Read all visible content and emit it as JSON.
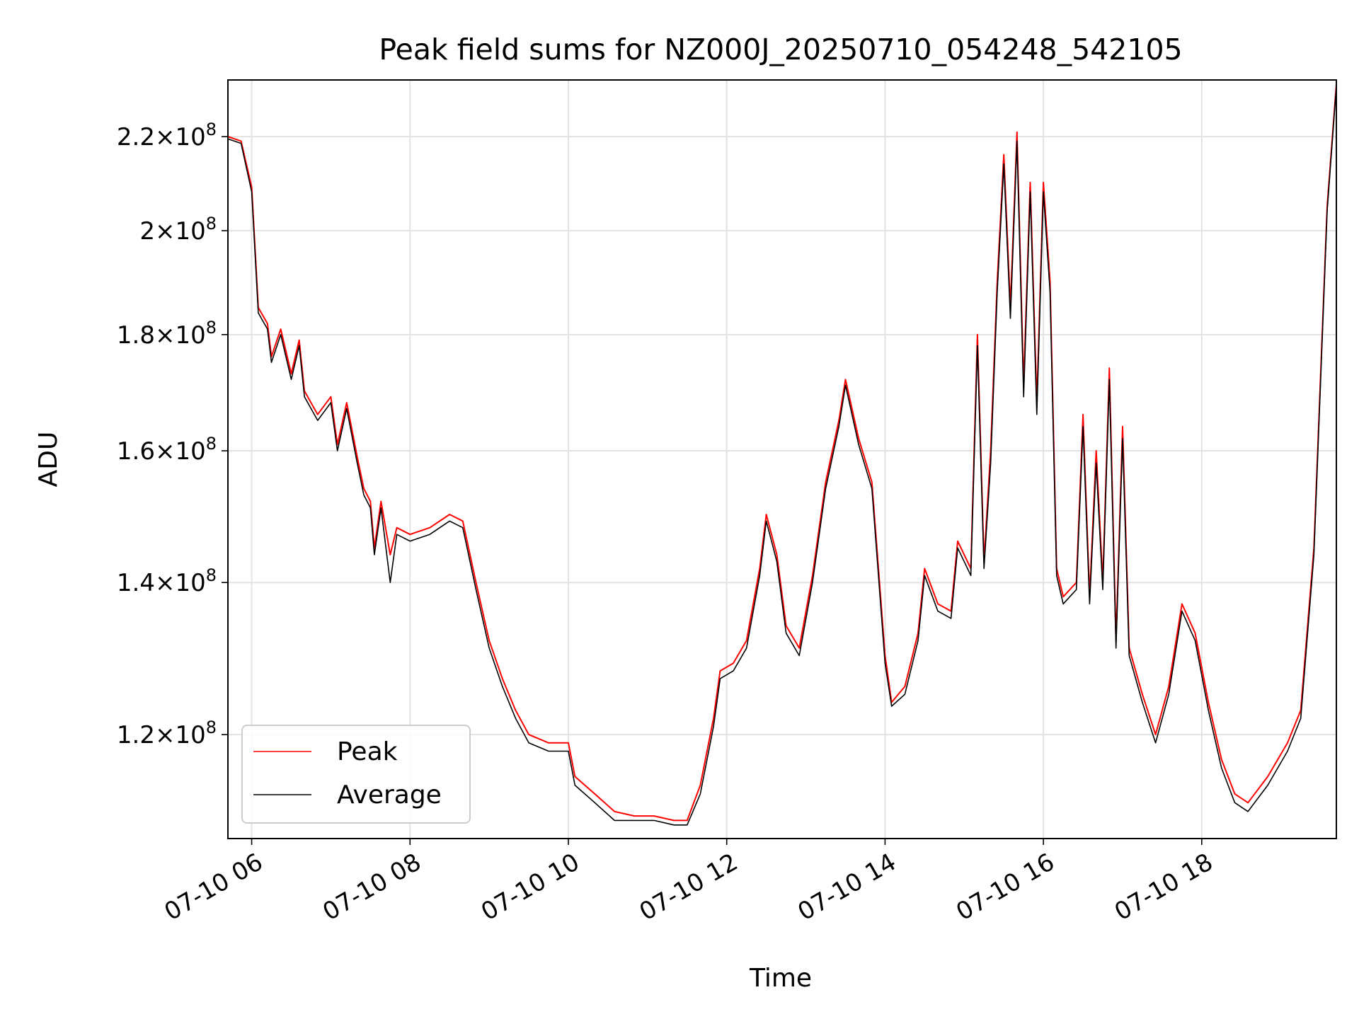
{
  "chart_data": {
    "type": "line",
    "title": "Peak field sums for NZ000J_20250710_054248_542105",
    "xlabel": "Time",
    "ylabel": "ADU",
    "y_scale": "log",
    "xlim": [
      "2025-07-10 05:42",
      "2025-07-10 19:42"
    ],
    "ylim": [
      108000000,
      233000000
    ],
    "grid": true,
    "legend_position": "lower-left",
    "x_ticks": [
      {
        "t": "2025-07-10 06:00",
        "label": "07-10 06"
      },
      {
        "t": "2025-07-10 08:00",
        "label": "07-10 08"
      },
      {
        "t": "2025-07-10 10:00",
        "label": "07-10 10"
      },
      {
        "t": "2025-07-10 12:00",
        "label": "07-10 12"
      },
      {
        "t": "2025-07-10 14:00",
        "label": "07-10 14"
      },
      {
        "t": "2025-07-10 16:00",
        "label": "07-10 16"
      },
      {
        "t": "2025-07-10 18:00",
        "label": "07-10 18"
      }
    ],
    "y_ticks": [
      {
        "value": 120000000,
        "mantissa": "1.2",
        "exp": "8"
      },
      {
        "value": 140000000,
        "mantissa": "1.4",
        "exp": "8"
      },
      {
        "value": 160000000,
        "mantissa": "1.6",
        "exp": "8"
      },
      {
        "value": 180000000,
        "mantissa": "1.8",
        "exp": "8"
      },
      {
        "value": 200000000,
        "mantissa": "2",
        "exp": "8"
      },
      {
        "value": 220000000,
        "mantissa": "2.2",
        "exp": "8"
      }
    ],
    "series": [
      {
        "name": "Peak",
        "color": "#ff0000",
        "points": [
          [
            "2025-07-10 05:42",
            220000000
          ],
          [
            "2025-07-10 05:52",
            219000000
          ],
          [
            "2025-07-10 06:00",
            209000000
          ],
          [
            "2025-07-10 06:05",
            185000000
          ],
          [
            "2025-07-10 06:12",
            182000000
          ],
          [
            "2025-07-10 06:15",
            176000000
          ],
          [
            "2025-07-10 06:22",
            181000000
          ],
          [
            "2025-07-10 06:30",
            173000000
          ],
          [
            "2025-07-10 06:36",
            179000000
          ],
          [
            "2025-07-10 06:40",
            170000000
          ],
          [
            "2025-07-10 06:50",
            166000000
          ],
          [
            "2025-07-10 07:00",
            169000000
          ],
          [
            "2025-07-10 07:05",
            161000000
          ],
          [
            "2025-07-10 07:12",
            168000000
          ],
          [
            "2025-07-10 07:20",
            159000000
          ],
          [
            "2025-07-10 07:25",
            154000000
          ],
          [
            "2025-07-10 07:30",
            152000000
          ],
          [
            "2025-07-10 07:33",
            145000000
          ],
          [
            "2025-07-10 07:38",
            152000000
          ],
          [
            "2025-07-10 07:45",
            144000000
          ],
          [
            "2025-07-10 07:50",
            148000000
          ],
          [
            "2025-07-10 08:00",
            147000000
          ],
          [
            "2025-07-10 08:15",
            148000000
          ],
          [
            "2025-07-10 08:30",
            150000000
          ],
          [
            "2025-07-10 08:40",
            149000000
          ],
          [
            "2025-07-10 08:50",
            140000000
          ],
          [
            "2025-07-10 09:00",
            132000000
          ],
          [
            "2025-07-10 09:10",
            127000000
          ],
          [
            "2025-07-10 09:20",
            123000000
          ],
          [
            "2025-07-10 09:30",
            120000000
          ],
          [
            "2025-07-10 09:45",
            119000000
          ],
          [
            "2025-07-10 10:00",
            119000000
          ],
          [
            "2025-07-10 10:05",
            115000000
          ],
          [
            "2025-07-10 10:20",
            113000000
          ],
          [
            "2025-07-10 10:35",
            111000000
          ],
          [
            "2025-07-10 10:50",
            110500000
          ],
          [
            "2025-07-10 11:05",
            110500000
          ],
          [
            "2025-07-10 11:20",
            110000000
          ],
          [
            "2025-07-10 11:30",
            110000000
          ],
          [
            "2025-07-10 11:40",
            114000000
          ],
          [
            "2025-07-10 11:50",
            122000000
          ],
          [
            "2025-07-10 11:55",
            128000000
          ],
          [
            "2025-07-10 12:05",
            129000000
          ],
          [
            "2025-07-10 12:15",
            132000000
          ],
          [
            "2025-07-10 12:25",
            142000000
          ],
          [
            "2025-07-10 12:30",
            150000000
          ],
          [
            "2025-07-10 12:38",
            144000000
          ],
          [
            "2025-07-10 12:45",
            134000000
          ],
          [
            "2025-07-10 12:55",
            131000000
          ],
          [
            "2025-07-10 13:05",
            141000000
          ],
          [
            "2025-07-10 13:15",
            155000000
          ],
          [
            "2025-07-10 13:25",
            165000000
          ],
          [
            "2025-07-10 13:30",
            172000000
          ],
          [
            "2025-07-10 13:40",
            162000000
          ],
          [
            "2025-07-10 13:50",
            155000000
          ],
          [
            "2025-07-10 14:00",
            130000000
          ],
          [
            "2025-07-10 14:05",
            124000000
          ],
          [
            "2025-07-10 14:15",
            126000000
          ],
          [
            "2025-07-10 14:25",
            133000000
          ],
          [
            "2025-07-10 14:30",
            142000000
          ],
          [
            "2025-07-10 14:40",
            137000000
          ],
          [
            "2025-07-10 14:50",
            136000000
          ],
          [
            "2025-07-10 14:55",
            146000000
          ],
          [
            "2025-07-10 15:05",
            142000000
          ],
          [
            "2025-07-10 15:10",
            180000000
          ],
          [
            "2025-07-10 15:15",
            143000000
          ],
          [
            "2025-07-10 15:20",
            160000000
          ],
          [
            "2025-07-10 15:25",
            190000000
          ],
          [
            "2025-07-10 15:30",
            216000000
          ],
          [
            "2025-07-10 15:35",
            185000000
          ],
          [
            "2025-07-10 15:40",
            221000000
          ],
          [
            "2025-07-10 15:45",
            171000000
          ],
          [
            "2025-07-10 15:50",
            210000000
          ],
          [
            "2025-07-10 15:55",
            168000000
          ],
          [
            "2025-07-10 16:00",
            210000000
          ],
          [
            "2025-07-10 16:05",
            190000000
          ],
          [
            "2025-07-10 16:10",
            142000000
          ],
          [
            "2025-07-10 16:15",
            138000000
          ],
          [
            "2025-07-10 16:25",
            140000000
          ],
          [
            "2025-07-10 16:30",
            166000000
          ],
          [
            "2025-07-10 16:35",
            138000000
          ],
          [
            "2025-07-10 16:40",
            160000000
          ],
          [
            "2025-07-10 16:45",
            140000000
          ],
          [
            "2025-07-10 16:50",
            174000000
          ],
          [
            "2025-07-10 16:55",
            132000000
          ],
          [
            "2025-07-10 17:00",
            164000000
          ],
          [
            "2025-07-10 17:05",
            131000000
          ],
          [
            "2025-07-10 17:15",
            125000000
          ],
          [
            "2025-07-10 17:25",
            120000000
          ],
          [
            "2025-07-10 17:35",
            126000000
          ],
          [
            "2025-07-10 17:45",
            137000000
          ],
          [
            "2025-07-10 17:55",
            133000000
          ],
          [
            "2025-07-10 18:05",
            124000000
          ],
          [
            "2025-07-10 18:15",
            117000000
          ],
          [
            "2025-07-10 18:25",
            113000000
          ],
          [
            "2025-07-10 18:35",
            112000000
          ],
          [
            "2025-07-10 18:50",
            115000000
          ],
          [
            "2025-07-10 19:05",
            119000000
          ],
          [
            "2025-07-10 19:15",
            123000000
          ],
          [
            "2025-07-10 19:25",
            145000000
          ],
          [
            "2025-07-10 19:35",
            205000000
          ],
          [
            "2025-07-10 19:42",
            232000000
          ]
        ]
      },
      {
        "name": "Average",
        "color": "#000000",
        "points": [
          [
            "2025-07-10 05:42",
            219500000
          ],
          [
            "2025-07-10 05:52",
            218500000
          ],
          [
            "2025-07-10 06:00",
            208000000
          ],
          [
            "2025-07-10 06:05",
            184000000
          ],
          [
            "2025-07-10 06:12",
            181000000
          ],
          [
            "2025-07-10 06:15",
            175000000
          ],
          [
            "2025-07-10 06:22",
            180000000
          ],
          [
            "2025-07-10 06:30",
            172000000
          ],
          [
            "2025-07-10 06:36",
            178000000
          ],
          [
            "2025-07-10 06:40",
            169000000
          ],
          [
            "2025-07-10 06:50",
            165000000
          ],
          [
            "2025-07-10 07:00",
            168000000
          ],
          [
            "2025-07-10 07:05",
            160000000
          ],
          [
            "2025-07-10 07:12",
            167000000
          ],
          [
            "2025-07-10 07:20",
            158000000
          ],
          [
            "2025-07-10 07:25",
            153000000
          ],
          [
            "2025-07-10 07:30",
            151000000
          ],
          [
            "2025-07-10 07:33",
            144000000
          ],
          [
            "2025-07-10 07:38",
            151000000
          ],
          [
            "2025-07-10 07:45",
            140000000
          ],
          [
            "2025-07-10 07:50",
            147000000
          ],
          [
            "2025-07-10 08:00",
            146000000
          ],
          [
            "2025-07-10 08:15",
            147000000
          ],
          [
            "2025-07-10 08:30",
            149000000
          ],
          [
            "2025-07-10 08:40",
            148000000
          ],
          [
            "2025-07-10 08:50",
            139000000
          ],
          [
            "2025-07-10 09:00",
            131000000
          ],
          [
            "2025-07-10 09:10",
            126000000
          ],
          [
            "2025-07-10 09:20",
            122000000
          ],
          [
            "2025-07-10 09:30",
            119000000
          ],
          [
            "2025-07-10 09:45",
            118000000
          ],
          [
            "2025-07-10 10:00",
            118000000
          ],
          [
            "2025-07-10 10:05",
            114000000
          ],
          [
            "2025-07-10 10:20",
            112000000
          ],
          [
            "2025-07-10 10:35",
            110000000
          ],
          [
            "2025-07-10 10:50",
            110000000
          ],
          [
            "2025-07-10 11:05",
            110000000
          ],
          [
            "2025-07-10 11:20",
            109500000
          ],
          [
            "2025-07-10 11:30",
            109500000
          ],
          [
            "2025-07-10 11:40",
            113000000
          ],
          [
            "2025-07-10 11:50",
            121000000
          ],
          [
            "2025-07-10 11:55",
            127000000
          ],
          [
            "2025-07-10 12:05",
            128000000
          ],
          [
            "2025-07-10 12:15",
            131000000
          ],
          [
            "2025-07-10 12:25",
            141000000
          ],
          [
            "2025-07-10 12:30",
            149000000
          ],
          [
            "2025-07-10 12:38",
            143000000
          ],
          [
            "2025-07-10 12:45",
            133000000
          ],
          [
            "2025-07-10 12:55",
            130000000
          ],
          [
            "2025-07-10 13:05",
            140000000
          ],
          [
            "2025-07-10 13:15",
            154000000
          ],
          [
            "2025-07-10 13:25",
            164000000
          ],
          [
            "2025-07-10 13:30",
            171000000
          ],
          [
            "2025-07-10 13:40",
            161000000
          ],
          [
            "2025-07-10 13:50",
            154000000
          ],
          [
            "2025-07-10 14:00",
            129000000
          ],
          [
            "2025-07-10 14:05",
            123500000
          ],
          [
            "2025-07-10 14:15",
            125000000
          ],
          [
            "2025-07-10 14:25",
            132000000
          ],
          [
            "2025-07-10 14:30",
            141000000
          ],
          [
            "2025-07-10 14:40",
            136000000
          ],
          [
            "2025-07-10 14:50",
            135000000
          ],
          [
            "2025-07-10 14:55",
            145000000
          ],
          [
            "2025-07-10 15:05",
            141000000
          ],
          [
            "2025-07-10 15:10",
            178000000
          ],
          [
            "2025-07-10 15:15",
            142000000
          ],
          [
            "2025-07-10 15:20",
            158000000
          ],
          [
            "2025-07-10 15:25",
            188000000
          ],
          [
            "2025-07-10 15:30",
            214000000
          ],
          [
            "2025-07-10 15:35",
            183000000
          ],
          [
            "2025-07-10 15:40",
            219000000
          ],
          [
            "2025-07-10 15:45",
            169000000
          ],
          [
            "2025-07-10 15:50",
            208000000
          ],
          [
            "2025-07-10 15:55",
            166000000
          ],
          [
            "2025-07-10 16:00",
            208000000
          ],
          [
            "2025-07-10 16:05",
            188000000
          ],
          [
            "2025-07-10 16:10",
            141000000
          ],
          [
            "2025-07-10 16:15",
            137000000
          ],
          [
            "2025-07-10 16:25",
            139000000
          ],
          [
            "2025-07-10 16:30",
            164000000
          ],
          [
            "2025-07-10 16:35",
            137000000
          ],
          [
            "2025-07-10 16:40",
            158000000
          ],
          [
            "2025-07-10 16:45",
            139000000
          ],
          [
            "2025-07-10 16:50",
            172000000
          ],
          [
            "2025-07-10 16:55",
            131000000
          ],
          [
            "2025-07-10 17:00",
            162000000
          ],
          [
            "2025-07-10 17:05",
            130000000
          ],
          [
            "2025-07-10 17:15",
            124000000
          ],
          [
            "2025-07-10 17:25",
            119000000
          ],
          [
            "2025-07-10 17:35",
            125000000
          ],
          [
            "2025-07-10 17:45",
            136000000
          ],
          [
            "2025-07-10 17:55",
            132000000
          ],
          [
            "2025-07-10 18:05",
            123000000
          ],
          [
            "2025-07-10 18:15",
            116000000
          ],
          [
            "2025-07-10 18:25",
            112000000
          ],
          [
            "2025-07-10 18:35",
            111000000
          ],
          [
            "2025-07-10 18:50",
            114000000
          ],
          [
            "2025-07-10 19:05",
            118000000
          ],
          [
            "2025-07-10 19:15",
            122000000
          ],
          [
            "2025-07-10 19:25",
            144000000
          ],
          [
            "2025-07-10 19:35",
            204000000
          ],
          [
            "2025-07-10 19:42",
            231500000
          ]
        ]
      }
    ]
  }
}
